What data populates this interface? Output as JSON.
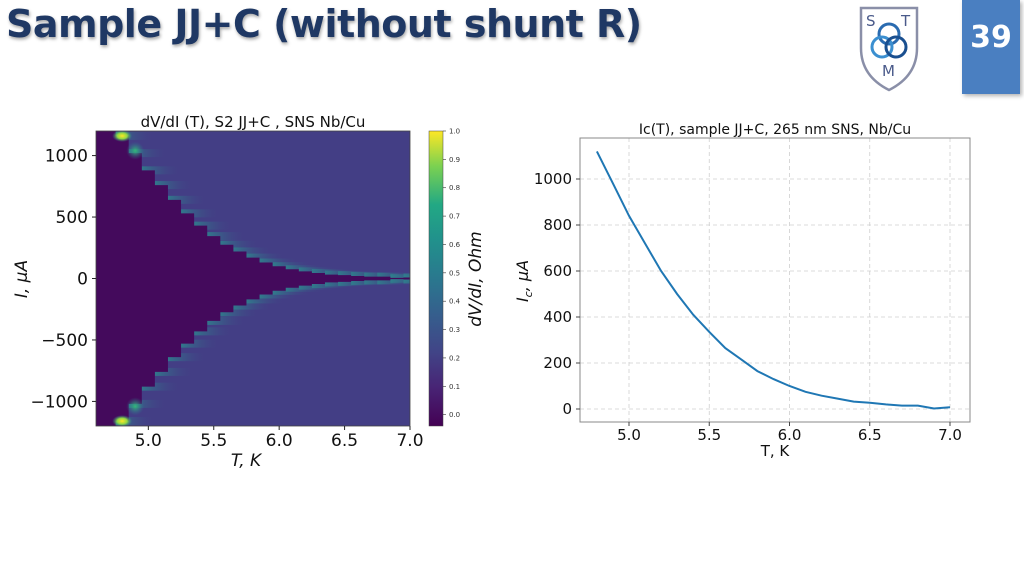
{
  "slide": {
    "title": "Sample JJ+C (without shunt R)",
    "page_number": "39",
    "logo": {
      "letters": [
        "S",
        "T",
        "M"
      ],
      "icon": "trefoil-knot-shield-logo"
    },
    "colors": {
      "title": "#1f3864",
      "badge": "#4a7fc1",
      "line": "#1f77b4"
    }
  },
  "chart_data": [
    {
      "type": "heatmap",
      "title": "dV/dI (T), S2 JJ+C , SNS Nb/Cu",
      "xlabel": "T, K",
      "ylabel": "I, μA",
      "xlim": [
        4.6,
        7.0
      ],
      "ylim": [
        -1200,
        1200
      ],
      "xticks": [
        5.0,
        5.5,
        6.0,
        6.5,
        7.0
      ],
      "xtick_labels": [
        "5.0",
        "5.5",
        "6.0",
        "6.5",
        "7.0"
      ],
      "yticks": [
        1000,
        500,
        0,
        -500,
        -1000
      ],
      "ytick_labels": [
        "1000",
        "500",
        "0",
        "−500",
        "−1000"
      ],
      "colormap": "viridis",
      "colorbar": {
        "label": "dV/dI, Ohm",
        "range": [
          -0.04,
          1.0
        ],
        "ticks": [
          0.0,
          0.1,
          0.2,
          0.3,
          0.4,
          0.5,
          0.6,
          0.7,
          0.8,
          0.9,
          1.0
        ],
        "tick_labels": [
          "0.0",
          "0.1",
          "0.2",
          "0.3",
          "0.4",
          "0.5",
          "0.6",
          "0.7",
          "0.8",
          "0.9",
          "1.0"
        ]
      },
      "superconducting_boundary": {
        "T": [
          4.8,
          4.9,
          5.0,
          5.1,
          5.2,
          5.3,
          5.4,
          5.5,
          5.6,
          5.7,
          5.8,
          5.9,
          6.0,
          6.1,
          6.2,
          6.3,
          6.4,
          6.5,
          6.6,
          6.7,
          6.8,
          6.9,
          7.0
        ],
        "Ic": [
          1160,
          1020,
          880,
          760,
          640,
          530,
          430,
          345,
          275,
          220,
          170,
          130,
          100,
          75,
          58,
          45,
          32,
          27,
          20,
          15,
          15,
          5,
          8
        ]
      },
      "normal_state_value": 0.12,
      "peak_value": 1.0,
      "grid": false
    },
    {
      "type": "line",
      "title": "Ic(T), sample JJ+C, 265 nm SNS, Nb/Cu",
      "xlabel": "T, K",
      "ylabel": "I_c, μA",
      "xlim": [
        4.7,
        7.07
      ],
      "ylim": [
        -55,
        1180
      ],
      "xticks": [
        5.0,
        5.5,
        6.0,
        6.5,
        7.0
      ],
      "xtick_labels": [
        "5.0",
        "5.5",
        "6.0",
        "6.5",
        "7.0"
      ],
      "yticks": [
        0,
        200,
        400,
        600,
        800,
        1000
      ],
      "ytick_labels": [
        "0",
        "200",
        "400",
        "600",
        "800",
        "1000"
      ],
      "grid": true,
      "series": [
        {
          "name": "Ic",
          "color": "#1f77b4",
          "x": [
            4.8,
            4.9,
            5.0,
            5.1,
            5.2,
            5.3,
            5.4,
            5.5,
            5.6,
            5.7,
            5.8,
            5.9,
            6.0,
            6.1,
            6.2,
            6.3,
            6.4,
            6.5,
            6.6,
            6.7,
            6.8,
            6.9,
            7.0
          ],
          "y": [
            1120,
            980,
            840,
            720,
            600,
            500,
            410,
            335,
            265,
            215,
            165,
            130,
            100,
            75,
            58,
            45,
            32,
            27,
            20,
            15,
            15,
            2,
            8
          ]
        }
      ]
    }
  ]
}
